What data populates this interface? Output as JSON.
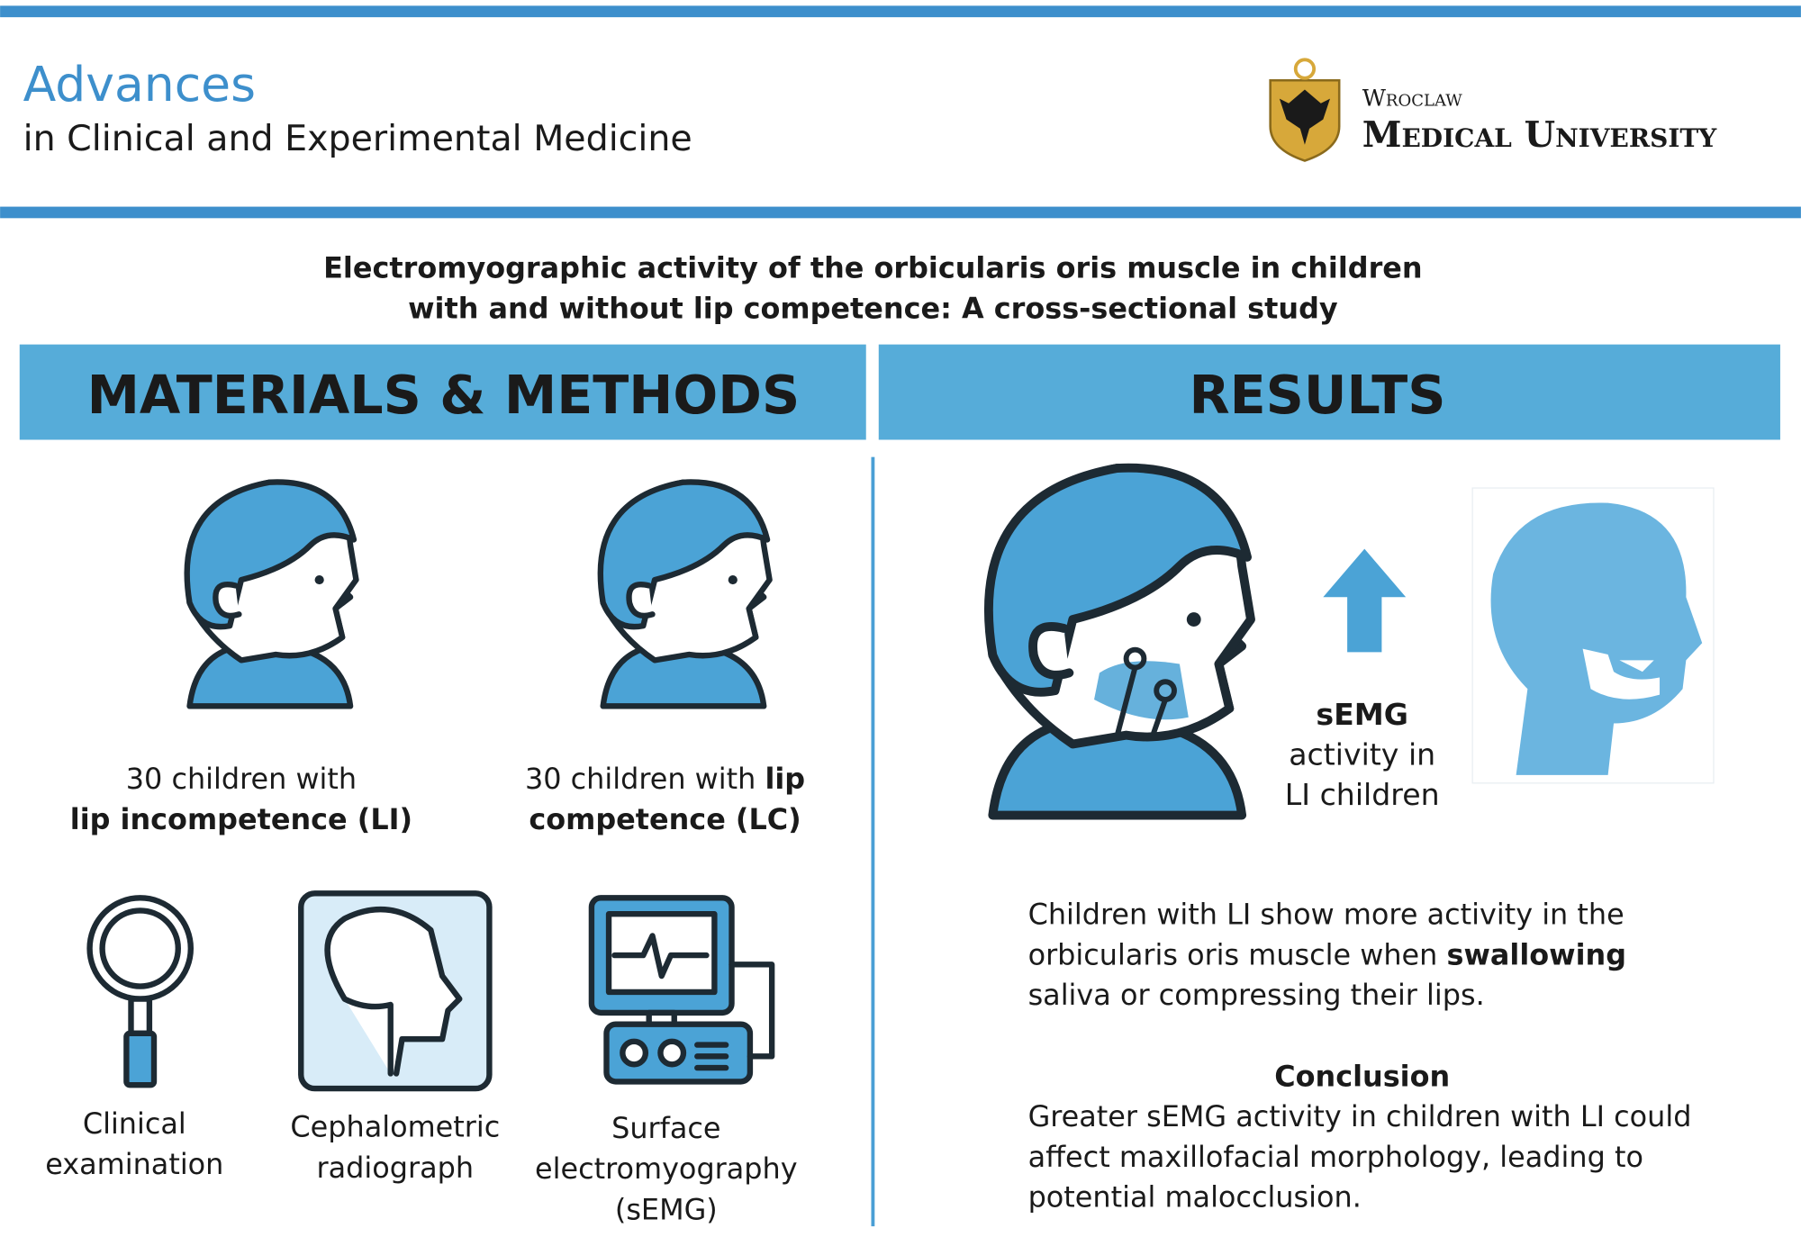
{
  "header": {
    "journal": "Advances",
    "journal_subtitle": "in Clinical and Experimental Medicine",
    "university": [
      "Wroclaw",
      "Medical University"
    ]
  },
  "title": [
    "Electromyographic activity of the orbicularis oris muscle in children",
    "with and without lip competence: A cross-sectional study"
  ],
  "methods": {
    "heading": "MATERIALS & METHODS",
    "groups": [
      {
        "lines": [
          [
            {
              "text": "30 children with"
            }
          ],
          [
            {
              "text": "lip incompetence (LI)",
              "bold": true
            }
          ]
        ]
      },
      {
        "lines": [
          [
            {
              "text": "30 children with "
            },
            {
              "text": "lip",
              "bold": true
            }
          ],
          [
            {
              "text": "competence (LC)",
              "bold": true
            }
          ]
        ]
      }
    ],
    "tools": [
      {
        "lines": [
          "Clinical",
          "examination"
        ]
      },
      {
        "lines": [
          "Cephalometric",
          "radiograph"
        ]
      },
      {
        "lines": [
          "Surface",
          "electromyography",
          "(sEMG)"
        ]
      }
    ]
  },
  "results": {
    "heading": "RESULTS",
    "arrow_label": [
      [
        {
          "text": "sEMG",
          "bold": true
        }
      ],
      [
        {
          "text": "activity in"
        }
      ],
      [
        {
          "text": "LI children"
        }
      ]
    ],
    "finding": [
      [
        {
          "text": "Children with LI show more activity in the"
        }
      ],
      [
        {
          "text": "orbicularis oris muscle when "
        },
        {
          "text": "swallowing",
          "bold": true
        }
      ],
      [
        {
          "text": "saliva or compressing their lips."
        }
      ]
    ],
    "conclusion_heading": "Conclusion",
    "conclusion": [
      "Greater sEMG activity in children with LI could",
      "affect maxillofacial morphology, leading to",
      "potential malocclusion."
    ]
  }
}
